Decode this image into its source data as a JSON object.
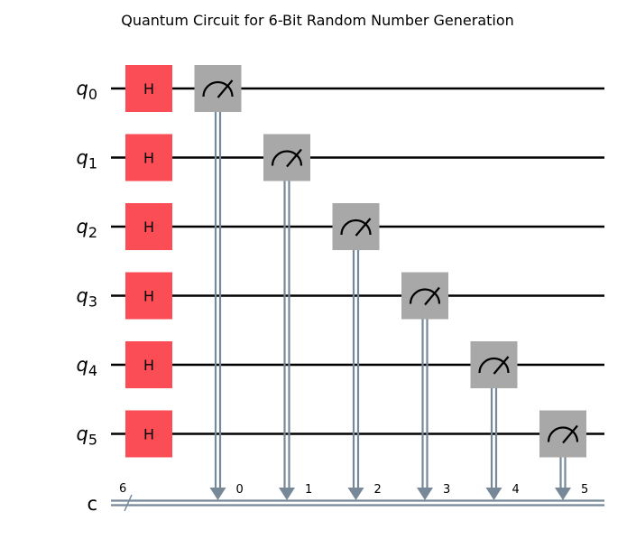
{
  "title": "Quantum Circuit for 6-Bit Random Number Generation",
  "qubits": [
    {
      "letter": "q",
      "index": "0"
    },
    {
      "letter": "q",
      "index": "1"
    },
    {
      "letter": "q",
      "index": "2"
    },
    {
      "letter": "q",
      "index": "3"
    },
    {
      "letter": "q",
      "index": "4"
    },
    {
      "letter": "q",
      "index": "5"
    }
  ],
  "classical_register": {
    "label": "c",
    "size": "6"
  },
  "gates": [
    {
      "type": "H",
      "label": "H",
      "qubit": 0,
      "column": 0
    },
    {
      "type": "H",
      "label": "H",
      "qubit": 1,
      "column": 0
    },
    {
      "type": "H",
      "label": "H",
      "qubit": 2,
      "column": 0
    },
    {
      "type": "H",
      "label": "H",
      "qubit": 3,
      "column": 0
    },
    {
      "type": "H",
      "label": "H",
      "qubit": 4,
      "column": 0
    },
    {
      "type": "H",
      "label": "H",
      "qubit": 5,
      "column": 0
    }
  ],
  "measurements": [
    {
      "qubit": 0,
      "cbit": "0",
      "column": 1
    },
    {
      "qubit": 1,
      "cbit": "1",
      "column": 2
    },
    {
      "qubit": 2,
      "cbit": "2",
      "column": 3
    },
    {
      "qubit": 3,
      "cbit": "3",
      "column": 4
    },
    {
      "qubit": 4,
      "cbit": "4",
      "column": 5
    },
    {
      "qubit": 5,
      "cbit": "5",
      "column": 6
    }
  ],
  "colors": {
    "wire": "#000000",
    "h_gate": "#fa4d56",
    "measure_box": "#a8a8a8",
    "classical": "#778899"
  }
}
